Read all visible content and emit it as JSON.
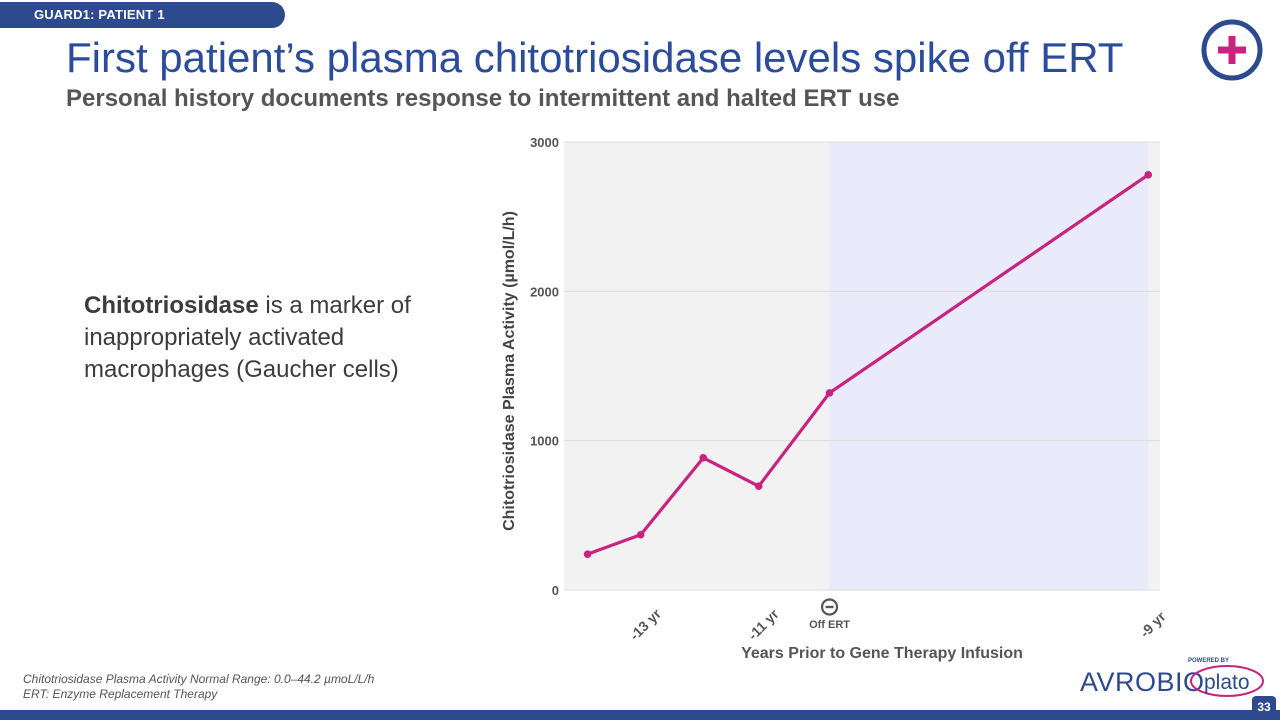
{
  "header": {
    "tag": "GUARD1: PATIENT 1",
    "title": "First patient’s plasma chitotriosidase levels spike off ERT",
    "subtitle": "Personal history documents response to intermittent and halted ERT use"
  },
  "body": {
    "bold": "Chitotriosidase",
    "rest": " is a marker of inappropriately activated macrophages (Gaucher cells)"
  },
  "chart_data": {
    "type": "line",
    "ylabel": "Chitotriosidase Plasma Activity (µmol/L/h)",
    "xlabel": "Years Prior to Gene Therapy Infusion",
    "ylim": [
      0,
      3000
    ],
    "yticks": [
      0,
      1000,
      2000,
      3000
    ],
    "xlim": [
      -13.45,
      -8.4
    ],
    "x": [
      -13.25,
      -12.8,
      -12.27,
      -11.8,
      -11.2,
      -8.5
    ],
    "y": [
      240,
      370,
      885,
      695,
      1320,
      2780
    ],
    "xticks": [
      {
        "x": -12.8,
        "label": "-13 yr"
      },
      {
        "x": -11.8,
        "label": "-11 yr"
      },
      {
        "x": -8.5,
        "label": "-9 yr"
      }
    ],
    "off_ert_x": -11.2,
    "off_ert_label": "Off ERT",
    "shade_start": -11.2,
    "shade_end": -8.5,
    "line_color": "#c8237f",
    "bg_color": "#f2f2f2",
    "shade_color": "#e9ebfb"
  },
  "footnotes": [
    "Chitotriosidase Plasma Activity Normal Range: 0.0–44.2 µmoL/L/h",
    "ERT: Enzyme Replacement Therapy"
  ],
  "page_number": "33",
  "brand": {
    "name": "AVROBIO",
    "powered": "POWERED BY",
    "platform": "plato"
  },
  "colors": {
    "primary": "#2e4a8f",
    "accent": "#c8237f"
  }
}
